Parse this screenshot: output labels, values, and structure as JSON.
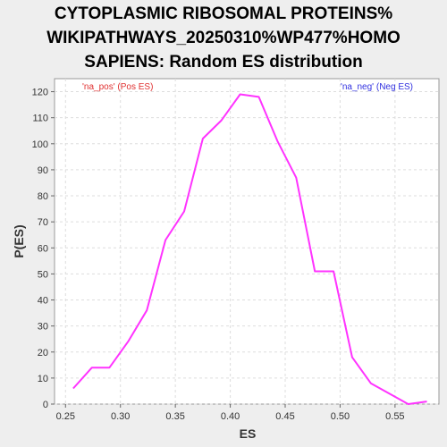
{
  "chart_data": {
    "type": "line",
    "title_lines": [
      "CYTOPLASMIC RIBOSOMAL PROTEINS%",
      "WIKIPATHWAYS_20250310%WP477%HOMO",
      "SAPIENS: Random ES distribution"
    ],
    "xlabel": "ES",
    "ylabel": "P(ES)",
    "xlim": [
      0.24,
      0.59
    ],
    "ylim": [
      0,
      125
    ],
    "xticks": [
      0.25,
      0.3,
      0.35,
      0.4,
      0.45,
      0.5,
      0.55
    ],
    "xtick_labels": [
      "0.25",
      "0.30",
      "0.35",
      "0.40",
      "0.45",
      "0.50",
      "0.55"
    ],
    "yticks": [
      0,
      10,
      20,
      30,
      40,
      50,
      60,
      70,
      80,
      90,
      100,
      110,
      120
    ],
    "grid": true,
    "series": [
      {
        "color": "#ff33ff",
        "x": [
          0.257,
          0.274,
          0.29,
          0.307,
          0.324,
          0.341,
          0.358,
          0.375,
          0.392,
          0.409,
          0.426,
          0.443,
          0.46,
          0.477,
          0.494,
          0.511,
          0.528,
          0.545,
          0.562,
          0.579
        ],
        "y": [
          6,
          14,
          14,
          24,
          36,
          63,
          74,
          102,
          109,
          119,
          118,
          101,
          87,
          51,
          51,
          18,
          8,
          4,
          0,
          1
        ]
      }
    ],
    "annotations": [
      {
        "text": "'na_pos' (Pos ES)",
        "color": "#e03030",
        "position": "top-left"
      },
      {
        "text": "'na_neg' (Neg ES)",
        "color": "#3030e0",
        "position": "top-right"
      }
    ]
  }
}
